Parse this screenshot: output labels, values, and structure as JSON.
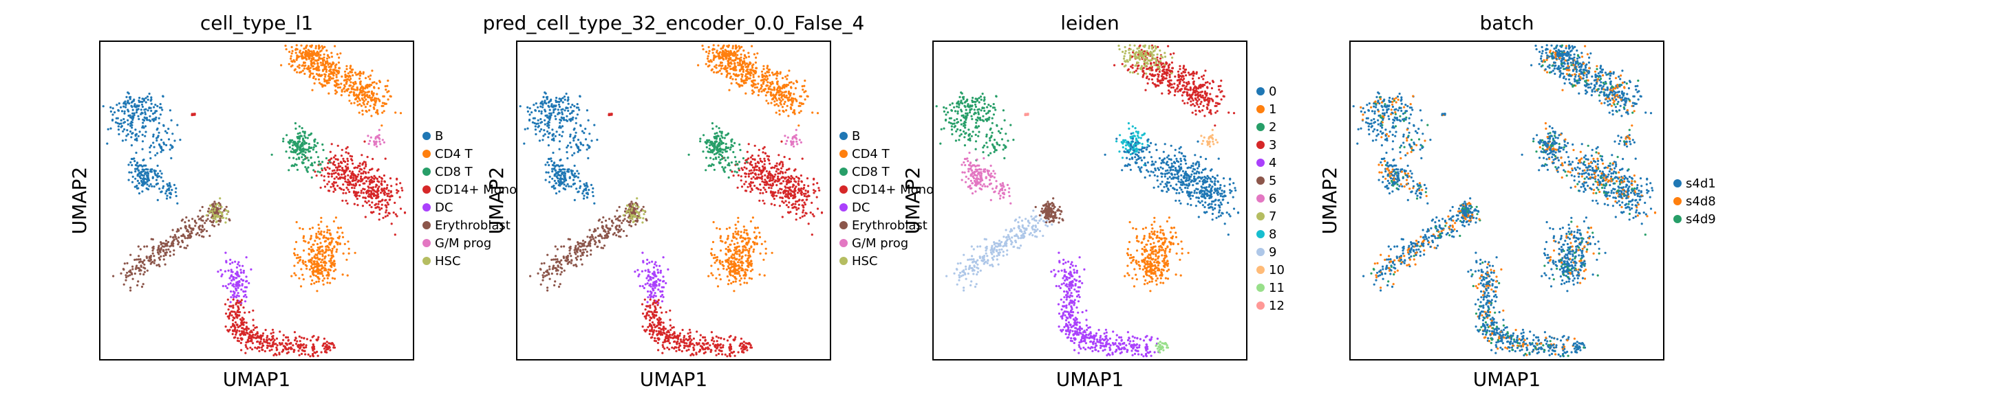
{
  "chart_data": [
    {
      "type": "scatter",
      "title": "cell_type_l1",
      "xlabel": "UMAP1",
      "ylabel": "UMAP2",
      "legend_placement": "right",
      "categories": [
        "B",
        "CD4 T",
        "CD8 T",
        "CD14+ Mono",
        "DC",
        "Erythroblast",
        "G/M prog",
        "HSC"
      ],
      "colors": [
        "#1f77b4",
        "#ff7f0e",
        "#279e68",
        "#d62728",
        "#aa40fc",
        "#8c564b",
        "#e377c2",
        "#b5bd61"
      ]
    },
    {
      "type": "scatter",
      "title": "pred_cell_type_32_encoder_0.0_False_4",
      "xlabel": "UMAP1",
      "ylabel": "UMAP2",
      "legend_placement": "right",
      "categories": [
        "B",
        "CD4 T",
        "CD8 T",
        "CD14+ Mono",
        "DC",
        "Erythroblast",
        "G/M prog",
        "HSC"
      ],
      "colors": [
        "#1f77b4",
        "#ff7f0e",
        "#279e68",
        "#d62728",
        "#aa40fc",
        "#8c564b",
        "#e377c2",
        "#b5bd61"
      ]
    },
    {
      "type": "scatter",
      "title": "leiden",
      "xlabel": "UMAP1",
      "ylabel": "UMAP2",
      "legend_placement": "right",
      "categories": [
        "0",
        "1",
        "2",
        "3",
        "4",
        "5",
        "6",
        "7",
        "8",
        "9",
        "10",
        "11",
        "12"
      ],
      "colors": [
        "#1f77b4",
        "#ff7f0e",
        "#279e68",
        "#d62728",
        "#aa40fc",
        "#8c564b",
        "#e377c2",
        "#b5bd61",
        "#17becf",
        "#aec7e8",
        "#ffbb78",
        "#98df8a",
        "#ff9896"
      ]
    },
    {
      "type": "scatter",
      "title": "batch",
      "xlabel": "UMAP1",
      "ylabel": "UMAP2",
      "legend_placement": "right",
      "categories": [
        "s4d1",
        "s4d8",
        "s4d9"
      ],
      "colors": [
        "#1f77b4",
        "#ff7f0e",
        "#279e68"
      ]
    }
  ]
}
